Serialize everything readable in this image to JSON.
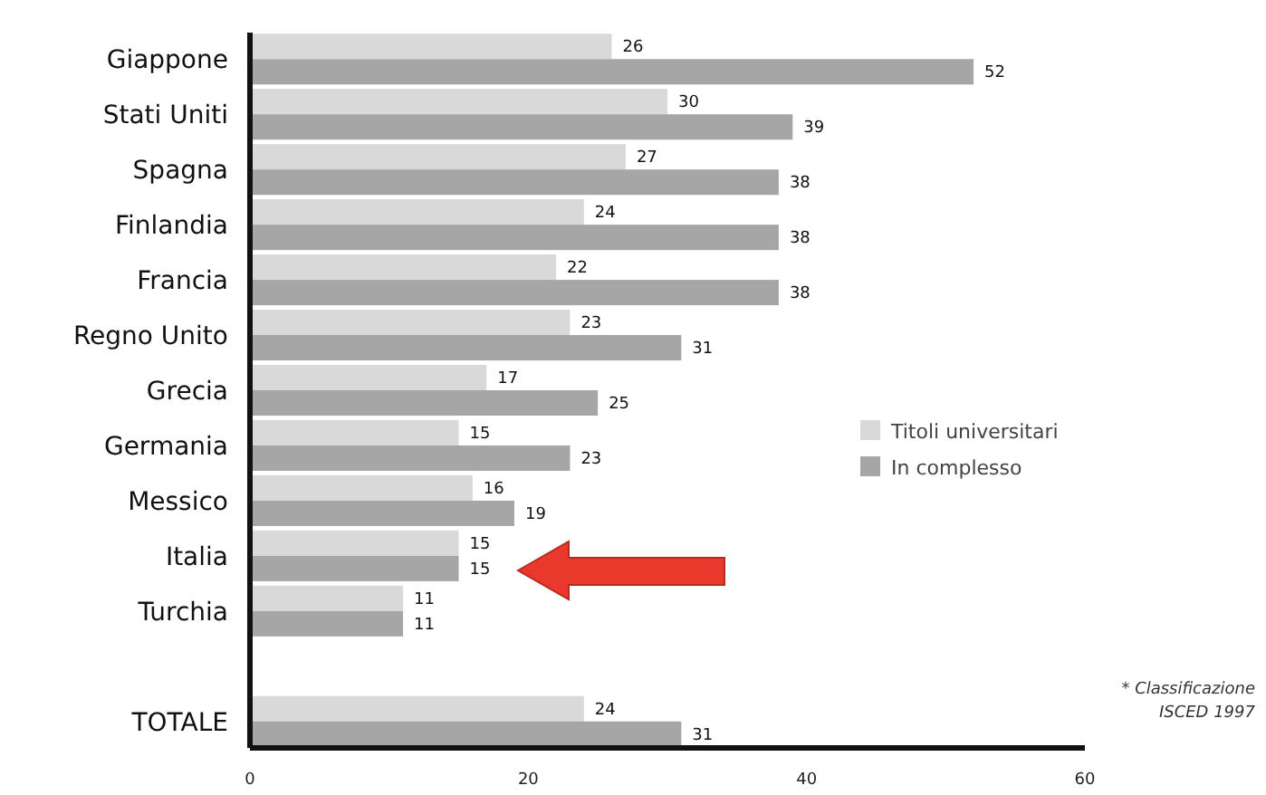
{
  "chart_data": {
    "type": "bar",
    "orientation": "horizontal",
    "categories": [
      "Giappone",
      "Stati Uniti",
      "Spagna",
      "Finlandia",
      "Francia",
      "Regno Unito",
      "Grecia",
      "Germania",
      "Messico",
      "Italia",
      "Turchia",
      null,
      "TOTALE"
    ],
    "series": [
      {
        "name": "Titoli universitari",
        "color": "#d9d9d9",
        "values": [
          26,
          30,
          27,
          24,
          22,
          23,
          17,
          15,
          16,
          15,
          11,
          null,
          24
        ]
      },
      {
        "name": "In complesso",
        "color": "#a6a6a6",
        "values": [
          52,
          39,
          38,
          38,
          38,
          31,
          25,
          23,
          19,
          15,
          11,
          null,
          31
        ]
      }
    ],
    "xlim": [
      0,
      60
    ],
    "xticks": [
      0,
      20,
      40,
      60
    ],
    "data_labels": true,
    "legend": "right",
    "grid": false,
    "annotations": [
      "* Classificazione ISCED 1997"
    ]
  }
}
